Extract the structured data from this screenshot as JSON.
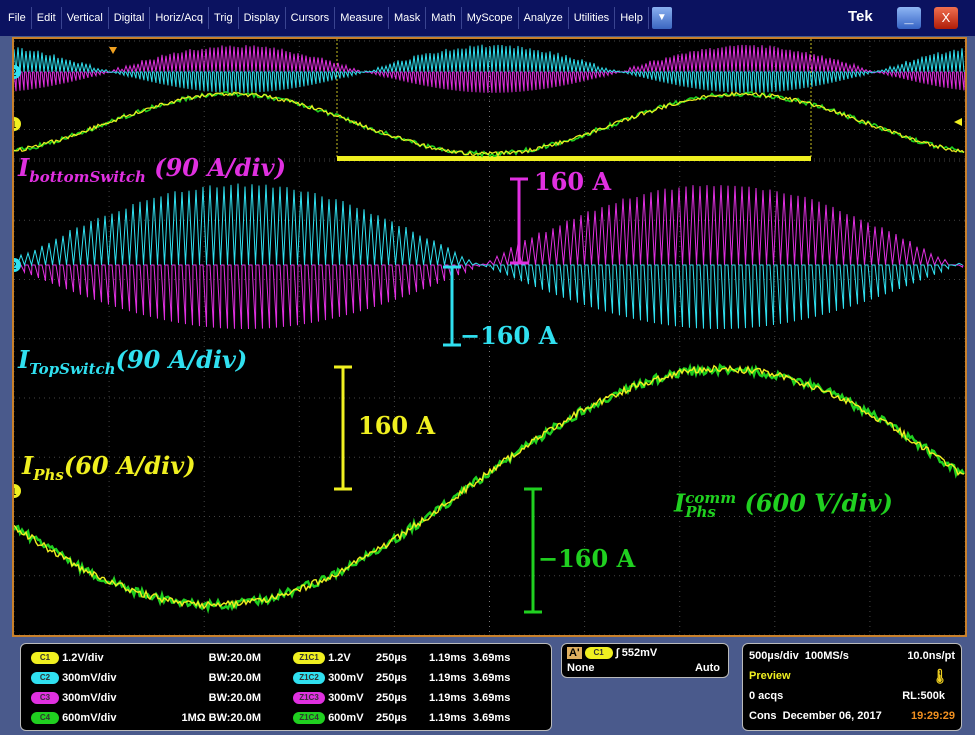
{
  "menu": [
    "File",
    "Edit",
    "Vertical",
    "Digital",
    "Horiz/Acq",
    "Trig",
    "Display",
    "Cursors",
    "Measure",
    "Mask",
    "Math",
    "MyScope",
    "Analyze",
    "Utilities",
    "Help"
  ],
  "brand": "Tek",
  "window": {
    "dropdown_icon": "chevron-down-icon",
    "minimize": "_",
    "close": "X"
  },
  "colors": {
    "ch1": "#f0f020",
    "ch2": "#30e0f0",
    "ch3": "#e030e0",
    "ch4": "#20d020",
    "frame": "#c8802a"
  },
  "annotations": {
    "bottom_switch": {
      "main": "I",
      "sub": "bottomSwitch",
      "scale": " (90 A/div)"
    },
    "top_switch": {
      "main": "I",
      "sub": "TopSwitch",
      "scale": "(90 A/div)"
    },
    "phs": {
      "main": "I",
      "sub": "Phs",
      "scale": "(60 A/div)"
    },
    "phs_comm": {
      "main": "I",
      "sup": "comm",
      "sub": "Phs",
      "scale": " (600 V/div)"
    },
    "magenta_160": "160 A",
    "cyan_neg160": "−160 A",
    "yellow_160": "160 A",
    "green_neg160": "−160 A"
  },
  "markers": {
    "ch2": "2",
    "ch1": "1"
  },
  "channels": [
    {
      "badge": "C1",
      "scale": "1.2V/div",
      "imp": "",
      "bw": "BW:20.0M",
      "zbadge": "Z1C1",
      "zscale": "1.2V",
      "zt": "250µs",
      "z1": "1.19ms",
      "z2": "3.69ms"
    },
    {
      "badge": "C2",
      "scale": "300mV/div",
      "imp": "",
      "bw": "BW:20.0M",
      "zbadge": "Z1C2",
      "zscale": "300mV",
      "zt": "250µs",
      "z1": "1.19ms",
      "z2": "3.69ms"
    },
    {
      "badge": "C3",
      "scale": "300mV/div",
      "imp": "",
      "bw": "BW:20.0M",
      "zbadge": "Z1C3",
      "zscale": "300mV",
      "zt": "250µs",
      "z1": "1.19ms",
      "z2": "3.69ms"
    },
    {
      "badge": "C4",
      "scale": "600mV/div",
      "imp": "1MΩ",
      "bw": "BW:20.0M",
      "zbadge": "Z1C4",
      "zscale": "600mV",
      "zt": "250µs",
      "z1": "1.19ms",
      "z2": "3.69ms"
    }
  ],
  "trigger": {
    "mode_badge": "A'",
    "source": "C1",
    "slope": "rising",
    "level": "552mV",
    "coupling": "None",
    "mode": "Auto"
  },
  "acq": {
    "timebase": "500µs/div",
    "rate": "100MS/s",
    "res": "10.0ns/pt",
    "state": "Preview",
    "acqs": "0 acqs",
    "rl": "RL:500k",
    "cons": "Cons",
    "date": "December 06, 2017",
    "time": "19:29:29"
  }
}
